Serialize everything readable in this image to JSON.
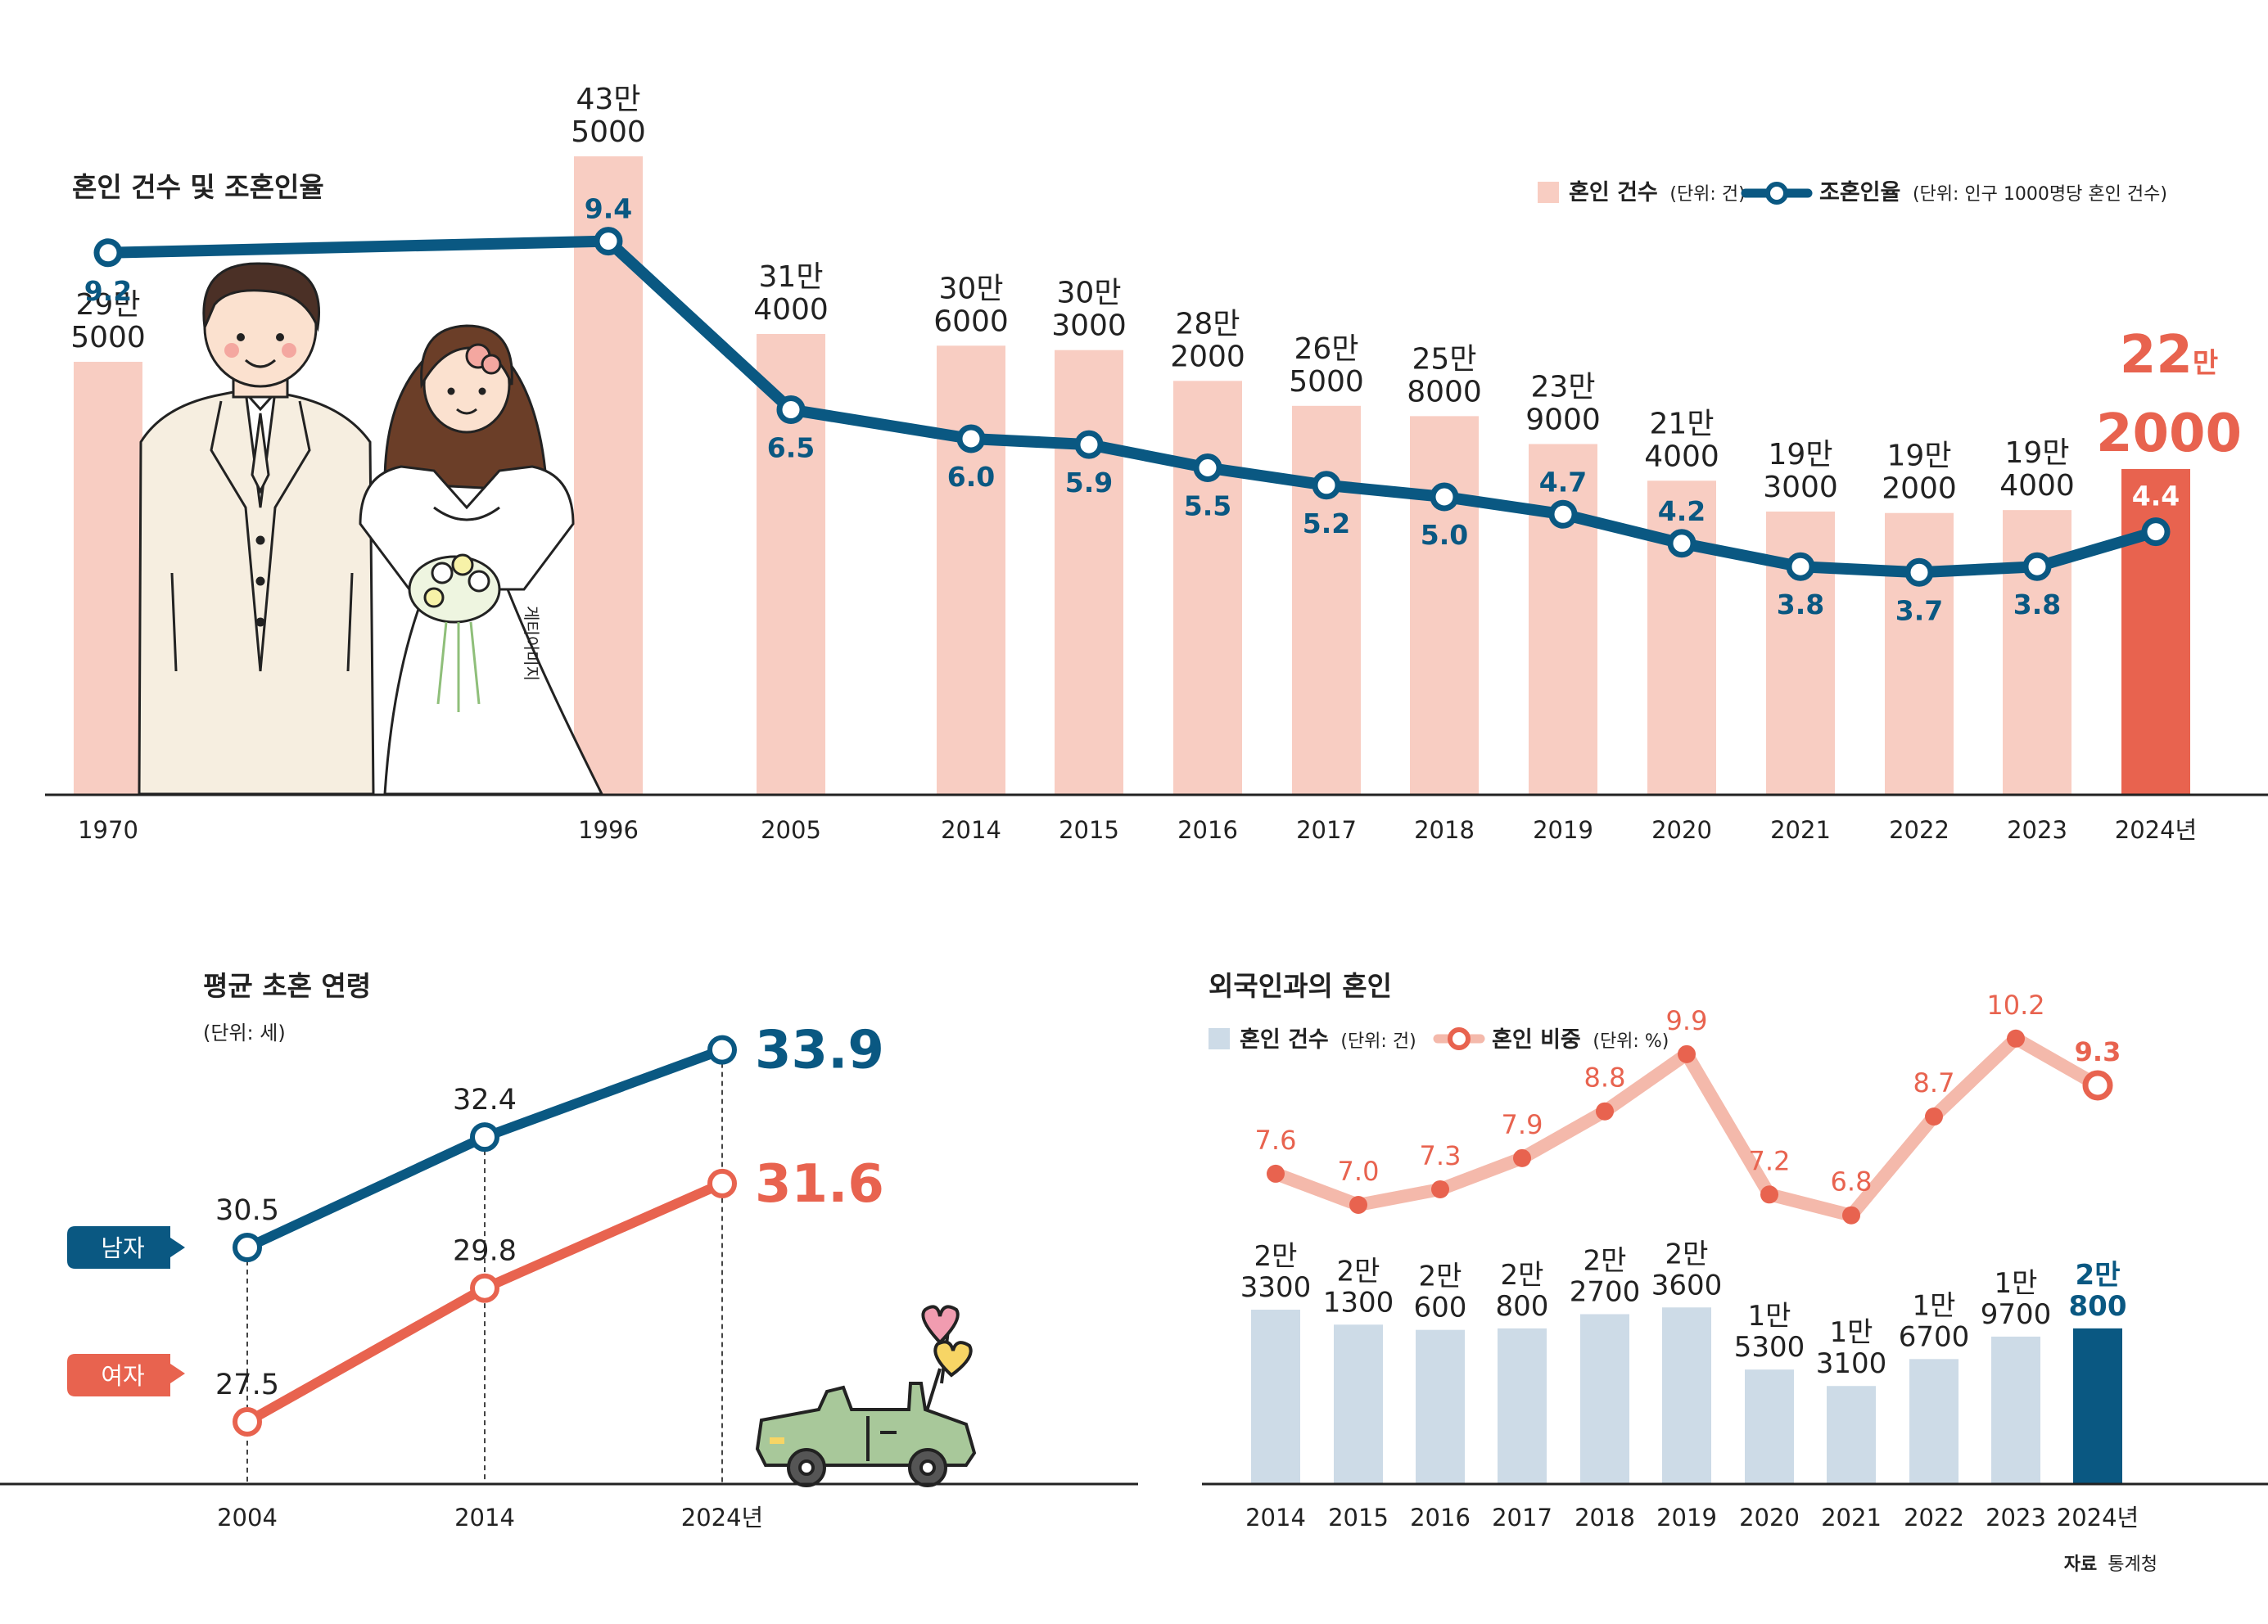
{
  "chart_data": [
    {
      "type": "bar+line",
      "title": "혼인 건수 및 조혼인율",
      "legend": {
        "position": "top-right",
        "bar_label": "혼인 건수",
        "bar_unit": "(단위: 건)",
        "line_label": "조혼인율",
        "line_unit": "(단위: 인구 1000명당 혼인 건수)"
      },
      "categories": [
        "1970",
        "1996",
        "2005",
        "2014",
        "2015",
        "2016",
        "2017",
        "2018",
        "2019",
        "2020",
        "2021",
        "2022",
        "2023",
        "2024년"
      ],
      "series": [
        {
          "name": "혼인 건수",
          "type": "bar",
          "values": [
            295000,
            435000,
            314000,
            306000,
            303000,
            282000,
            265000,
            258000,
            239000,
            214000,
            193000,
            192000,
            194000,
            222000
          ],
          "labels_top": [
            "29만",
            "43만",
            "31만",
            "30만",
            "30만",
            "28만",
            "26만",
            "25만",
            "23만",
            "21만",
            "19만",
            "19만",
            "19만",
            "22"
          ],
          "labels_bottom": [
            "5000",
            "5000",
            "4000",
            "6000",
            "3000",
            "2000",
            "5000",
            "8000",
            "9000",
            "4000",
            "3000",
            "2000",
            "4000",
            "2000"
          ],
          "highlight_suffix": "만"
        },
        {
          "name": "조혼인율",
          "type": "line",
          "values": [
            9.2,
            9.4,
            6.5,
            6.0,
            5.9,
            5.5,
            5.2,
            5.0,
            4.7,
            4.2,
            3.8,
            3.7,
            3.8,
            4.4
          ],
          "labels": [
            "9.2",
            "9.4",
            "6.5",
            "6.0",
            "5.9",
            "5.5",
            "5.2",
            "5.0",
            "4.7",
            "4.2",
            "3.8",
            "3.7",
            "3.8",
            "4.4"
          ]
        }
      ],
      "annotation": "게티이미지"
    },
    {
      "type": "line",
      "title": "평균 초혼 연령",
      "unit": "(단위: 세)",
      "categories": [
        "2004",
        "2014",
        "2024년"
      ],
      "series": [
        {
          "name": "남자",
          "values": [
            30.5,
            32.4,
            33.9
          ],
          "labels": [
            "30.5",
            "32.4",
            "33.9"
          ]
        },
        {
          "name": "여자",
          "values": [
            27.5,
            29.8,
            31.6
          ],
          "labels": [
            "27.5",
            "29.8",
            "31.6"
          ]
        }
      ]
    },
    {
      "type": "bar+line",
      "title": "외국인과의 혼인",
      "legend": {
        "position": "top-left",
        "bar_label": "혼인 건수",
        "bar_unit": "(단위: 건)",
        "line_label": "혼인 비중",
        "line_unit": "(단위: %)"
      },
      "categories": [
        "2014",
        "2015",
        "2016",
        "2017",
        "2018",
        "2019",
        "2020",
        "2021",
        "2022",
        "2023",
        "2024년"
      ],
      "series": [
        {
          "name": "혼인 건수",
          "type": "bar",
          "values": [
            23300,
            21300,
            20600,
            20800,
            22700,
            23600,
            15300,
            13100,
            16700,
            19700,
            20800
          ],
          "labels_top": [
            "2만",
            "2만",
            "2만",
            "2만",
            "2만",
            "2만",
            "1만",
            "1만",
            "1만",
            "1만",
            "2만"
          ],
          "labels_bottom": [
            "3300",
            "1300",
            "600",
            "800",
            "2700",
            "3600",
            "5300",
            "3100",
            "6700",
            "9700",
            "800"
          ]
        },
        {
          "name": "혼인 비중",
          "type": "line",
          "values": [
            7.6,
            7.0,
            7.3,
            7.9,
            8.8,
            9.9,
            7.2,
            6.8,
            8.7,
            10.2,
            9.3
          ],
          "labels": [
            "7.6",
            "7.0",
            "7.3",
            "7.9",
            "8.8",
            "9.9",
            "7.2",
            "6.8",
            "8.7",
            "10.2",
            "9.3"
          ]
        }
      ]
    }
  ],
  "source": {
    "label": "자료",
    "value": "통계청"
  },
  "colors": {
    "bar_main": "#f8cdc2",
    "bar_highlight": "#e8634f",
    "line_main": "#0a5882",
    "male": "#0a5882",
    "female": "#e8634f",
    "bar_foreign": "#cddbe7",
    "bar_foreign_highlight": "#0a5882",
    "line_foreign": "#f4b9ab",
    "dot_foreign": "#e8634f",
    "text": "#222222"
  }
}
